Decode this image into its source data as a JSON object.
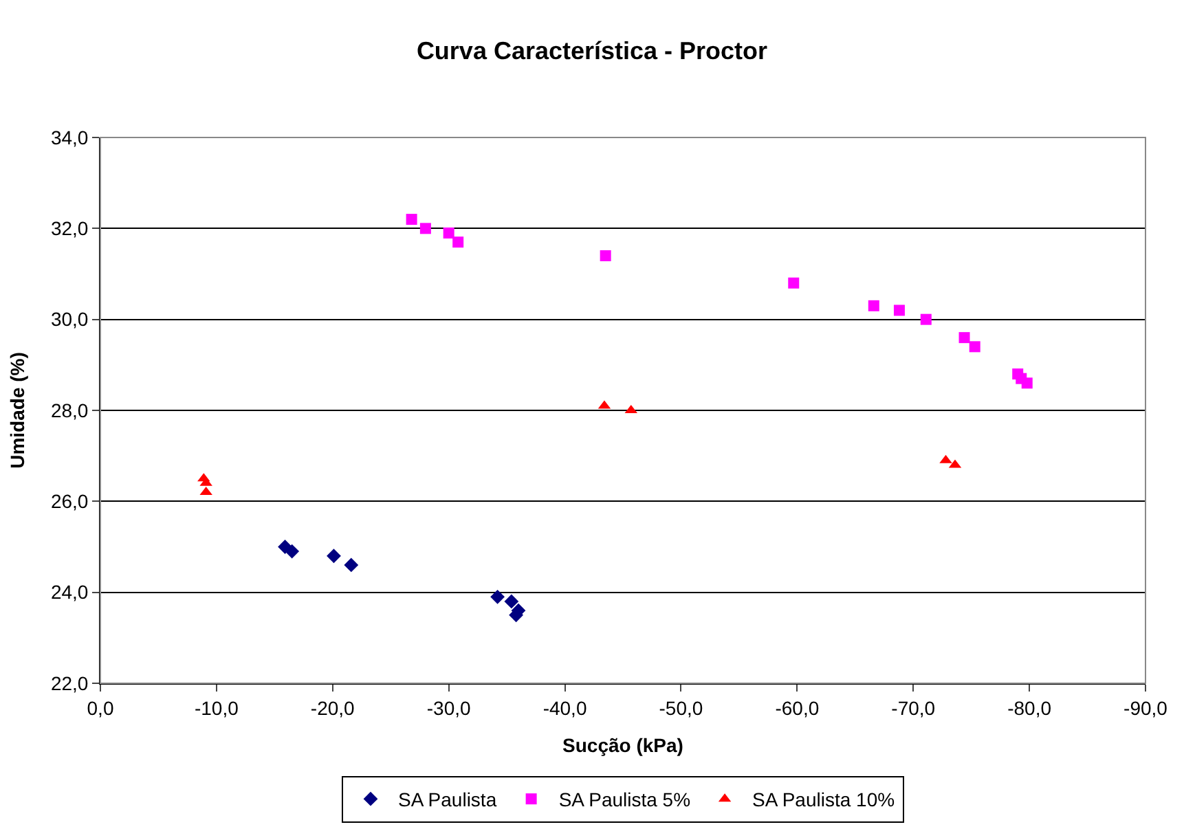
{
  "chart_data": {
    "type": "scatter",
    "title": "Curva Característica - Proctor",
    "xlabel": "Sucção (kPa)",
    "ylabel": "Umidade (%)",
    "xlim": [
      0,
      -90
    ],
    "ylim": [
      22,
      34
    ],
    "xticks": [
      {
        "value": 0,
        "label": "0,0"
      },
      {
        "value": -10,
        "label": "-10,0"
      },
      {
        "value": -20,
        "label": "-20,0"
      },
      {
        "value": -30,
        "label": "-30,0"
      },
      {
        "value": -40,
        "label": "-40,0"
      },
      {
        "value": -50,
        "label": "-50,0"
      },
      {
        "value": -60,
        "label": "-60,0"
      },
      {
        "value": -70,
        "label": "-70,0"
      },
      {
        "value": -80,
        "label": "-80,0"
      },
      {
        "value": -90,
        "label": "-90,0"
      }
    ],
    "yticks": [
      {
        "value": 22,
        "label": "22,0"
      },
      {
        "value": 24,
        "label": "24,0"
      },
      {
        "value": 26,
        "label": "26,0"
      },
      {
        "value": 28,
        "label": "28,0"
      },
      {
        "value": 30,
        "label": "30,0"
      },
      {
        "value": 32,
        "label": "32,0"
      },
      {
        "value": 34,
        "label": "34,0"
      }
    ],
    "grid": "y",
    "legend": "bottom",
    "series": [
      {
        "name": "SA Paulista",
        "color": "#000080",
        "marker": "diamond",
        "x": [
          -15.9,
          -16.5,
          -20.1,
          -21.6,
          -34.2,
          -35.4,
          -36.0,
          -35.8
        ],
        "values": [
          25.0,
          24.9,
          24.8,
          24.6,
          23.9,
          23.8,
          23.6,
          23.5
        ]
      },
      {
        "name": "SA Paulista 5%",
        "color": "#ff00ff",
        "marker": "square",
        "x": [
          -26.8,
          -28.0,
          -30.0,
          -30.8,
          -43.5,
          -59.7,
          -66.6,
          -68.8,
          -71.1,
          -74.4,
          -75.3,
          -79.0,
          -79.3,
          -79.8
        ],
        "values": [
          32.2,
          32.0,
          31.9,
          31.7,
          31.4,
          30.8,
          30.3,
          30.2,
          30.0,
          29.6,
          29.4,
          28.8,
          28.7,
          28.6
        ]
      },
      {
        "name": "SA Paulista 10%",
        "color": "#ff0000",
        "marker": "triangle",
        "x": [
          -8.9,
          -9.1,
          -9.1,
          -43.4,
          -45.7,
          -72.8,
          -73.6
        ],
        "values": [
          26.5,
          26.4,
          26.2,
          28.1,
          28.0,
          26.9,
          26.8
        ]
      }
    ]
  }
}
